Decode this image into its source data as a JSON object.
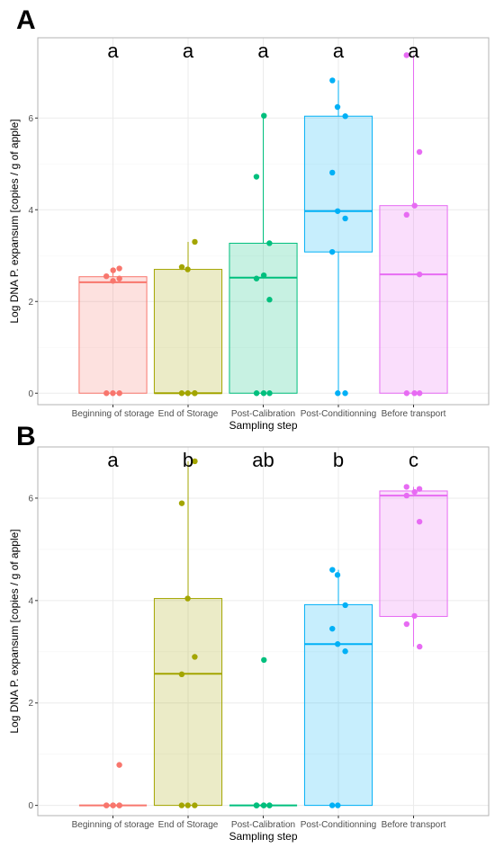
{
  "panel_labels": [
    "A",
    "B"
  ],
  "chart_data": [
    {
      "type": "box",
      "panel": "A",
      "categories": [
        "Beginning of storage",
        "End of Storage",
        "Post-Calibration",
        "Post-Conditionning",
        "Before transport"
      ],
      "colors": [
        "#F8766D",
        "#A3A500",
        "#00BF7D",
        "#00B0F6",
        "#E76BF3"
      ],
      "letters": [
        "a",
        "a",
        "a",
        "a",
        "a"
      ],
      "xlabel": "Sampling step",
      "ylabel": "Log DNA P. expansum [copies / g of apple]",
      "ylim": [
        -0.25,
        7.75
      ],
      "yticks": [
        0,
        2,
        4,
        6
      ],
      "grid": true,
      "boxes": [
        {
          "min": 0,
          "q1": 0,
          "median": 2.42,
          "q3": 2.54,
          "max": 2.72
        },
        {
          "min": 0,
          "q1": 0,
          "median": 0,
          "q3": 2.7,
          "max": 3.3
        },
        {
          "min": 0,
          "q1": 0,
          "median": 2.52,
          "q3": 3.27,
          "max": 6.05
        },
        {
          "min": 0,
          "q1": 3.08,
          "median": 3.97,
          "q3": 6.04,
          "max": 6.82
        },
        {
          "min": 0,
          "q1": 0,
          "median": 2.59,
          "q3": 4.09,
          "max": 7.37
        }
      ],
      "points": [
        [
          2.72,
          2.68,
          2.55,
          2.5,
          2.45,
          0,
          0,
          0
        ],
        [
          3.3,
          2.75,
          2.7,
          0,
          0,
          0,
          0
        ],
        [
          6.05,
          4.72,
          3.27,
          2.57,
          2.5,
          2.04,
          0,
          0,
          0
        ],
        [
          6.82,
          6.24,
          6.04,
          4.81,
          3.97,
          3.81,
          3.08,
          0,
          0
        ],
        [
          7.37,
          5.26,
          4.09,
          3.89,
          2.59,
          0,
          0,
          0
        ]
      ]
    },
    {
      "type": "box",
      "panel": "B",
      "categories": [
        "Beginning of storage",
        "End of Storage",
        "Post-Calibration",
        "Post-Conditionning",
        "Before transport"
      ],
      "colors": [
        "#F8766D",
        "#A3A500",
        "#00BF7D",
        "#00B0F6",
        "#E76BF3"
      ],
      "letters": [
        "a",
        "b",
        "ab",
        "b",
        "c"
      ],
      "xlabel": "Sampling step",
      "ylabel": "Log DNA P. expansum [copies / g of apple]",
      "ylim": [
        -0.2,
        7.0
      ],
      "yticks": [
        0,
        2,
        4,
        6
      ],
      "grid": true,
      "boxes": [
        {
          "min": 0,
          "q1": 0,
          "median": 0,
          "q3": 0,
          "max": 0.01
        },
        {
          "min": 0,
          "q1": 0,
          "median": 2.57,
          "q3": 4.04,
          "max": 6.72
        },
        {
          "min": 0,
          "q1": 0,
          "median": 0,
          "q3": 0,
          "max": 0.01
        },
        {
          "min": 0,
          "q1": 0,
          "median": 3.15,
          "q3": 3.92,
          "max": 4.6
        },
        {
          "min": 3.1,
          "q1": 3.69,
          "median": 6.05,
          "q3": 6.14,
          "max": 6.22
        }
      ],
      "points": [
        [
          0.79,
          0,
          0,
          0,
          0,
          0,
          0
        ],
        [
          6.72,
          5.9,
          4.04,
          2.9,
          2.56,
          0,
          0,
          0
        ],
        [
          2.84,
          0,
          0,
          0,
          0,
          0,
          0,
          0
        ],
        [
          4.6,
          4.5,
          3.91,
          3.45,
          3.15,
          3.01,
          0,
          0
        ],
        [
          6.22,
          6.18,
          6.12,
          6.05,
          5.54,
          3.7,
          3.54,
          3.1
        ]
      ]
    }
  ]
}
